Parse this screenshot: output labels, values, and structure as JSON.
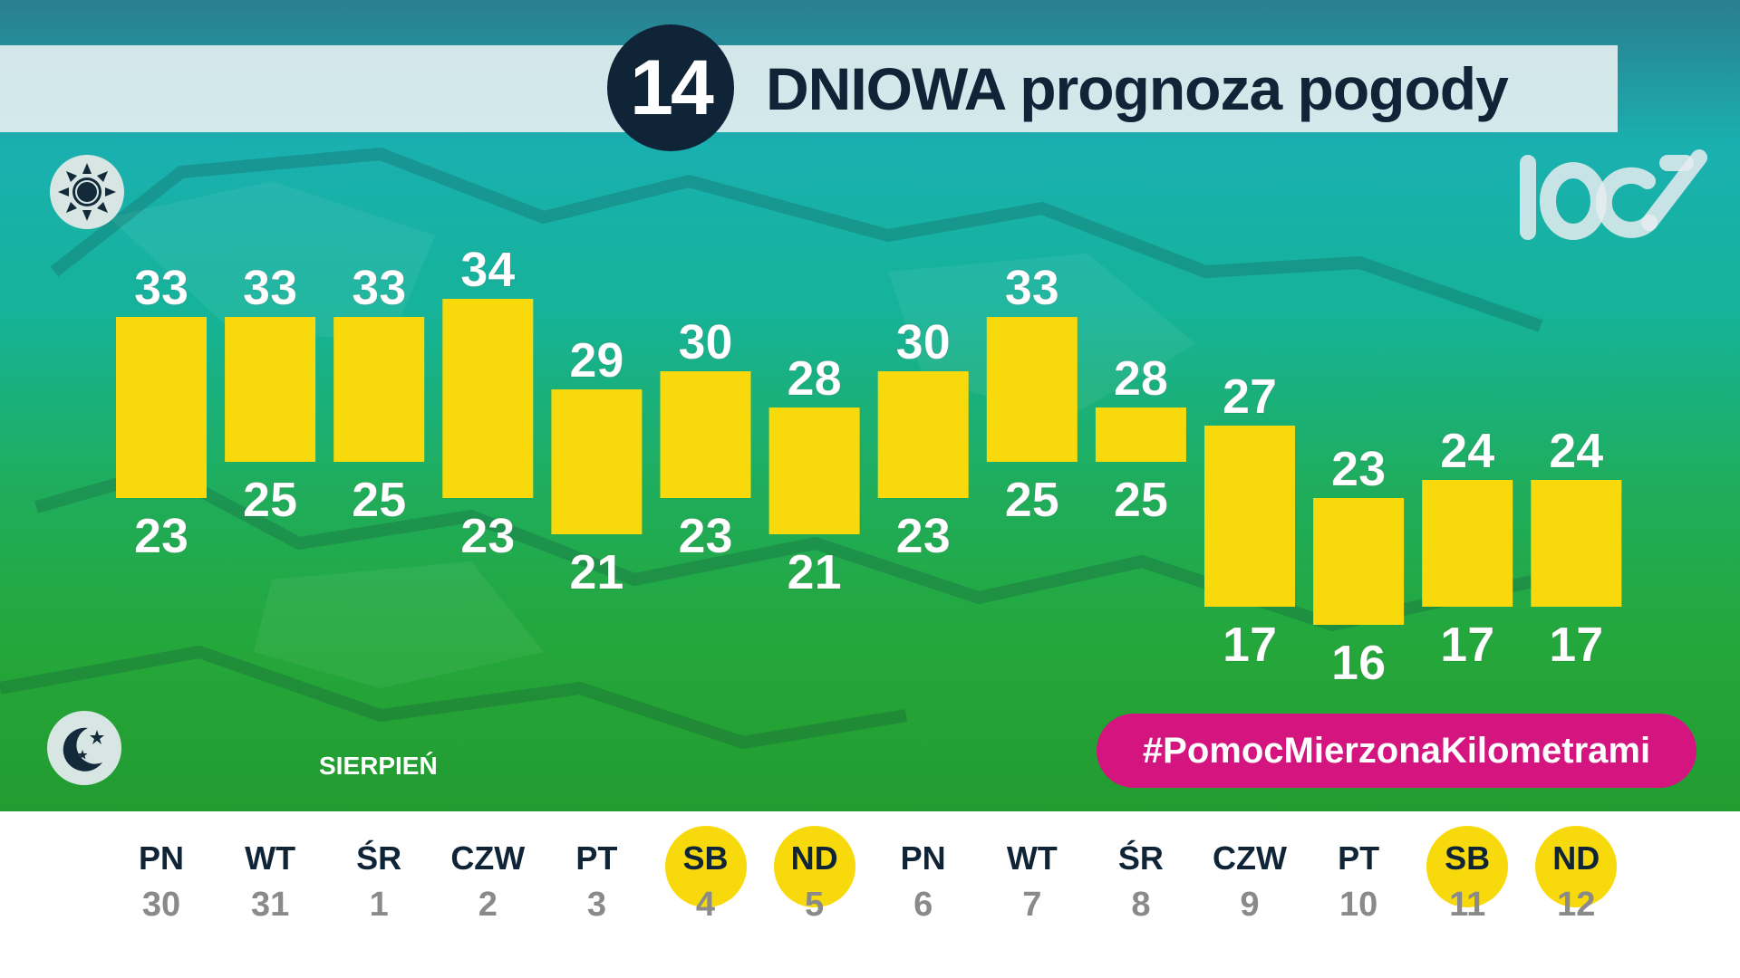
{
  "header": {
    "days_number": "14",
    "title": "DNIOWA prognoza pogody"
  },
  "icons": {
    "day": "sun-icon",
    "night": "moon-stars-icon",
    "logo": "100-logo"
  },
  "month_label": "SIERPIEŃ",
  "hashtag": "#PomocMierzonaKilometrami",
  "colors": {
    "bar": "#f7d90c",
    "hashtag_bg": "#d4157f",
    "title_dark": "#0f2437",
    "weekend_circle": "#f7d90c"
  },
  "days": [
    {
      "dow": "PN",
      "dom": "30",
      "weekend": false
    },
    {
      "dow": "WT",
      "dom": "31",
      "weekend": false
    },
    {
      "dow": "ŚR",
      "dom": "1",
      "weekend": false
    },
    {
      "dow": "CZW",
      "dom": "2",
      "weekend": false
    },
    {
      "dow": "PT",
      "dom": "3",
      "weekend": false
    },
    {
      "dow": "SB",
      "dom": "4",
      "weekend": true
    },
    {
      "dow": "ND",
      "dom": "5",
      "weekend": true
    },
    {
      "dow": "PN",
      "dom": "6",
      "weekend": false
    },
    {
      "dow": "WT",
      "dom": "7",
      "weekend": false
    },
    {
      "dow": "ŚR",
      "dom": "8",
      "weekend": false
    },
    {
      "dow": "CZW",
      "dom": "9",
      "weekend": false
    },
    {
      "dow": "PT",
      "dom": "10",
      "weekend": false
    },
    {
      "dow": "SB",
      "dom": "11",
      "weekend": true
    },
    {
      "dow": "ND",
      "dom": "12",
      "weekend": true
    }
  ],
  "chart_data": {
    "type": "bar",
    "categories": [
      "30",
      "31",
      "1",
      "2",
      "3",
      "4",
      "5",
      "6",
      "7",
      "8",
      "9",
      "10",
      "11",
      "12"
    ],
    "series": [
      {
        "values": [
          33,
          33,
          33,
          34,
          29,
          30,
          28,
          30,
          33,
          28,
          27,
          23,
          24,
          24
        ]
      },
      {
        "values": [
          23,
          25,
          25,
          23,
          21,
          23,
          21,
          23,
          25,
          25,
          17,
          16,
          17,
          17
        ]
      }
    ],
    "title": "",
    "xlabel": "",
    "ylabel": "",
    "grid": false,
    "legend": "none"
  }
}
